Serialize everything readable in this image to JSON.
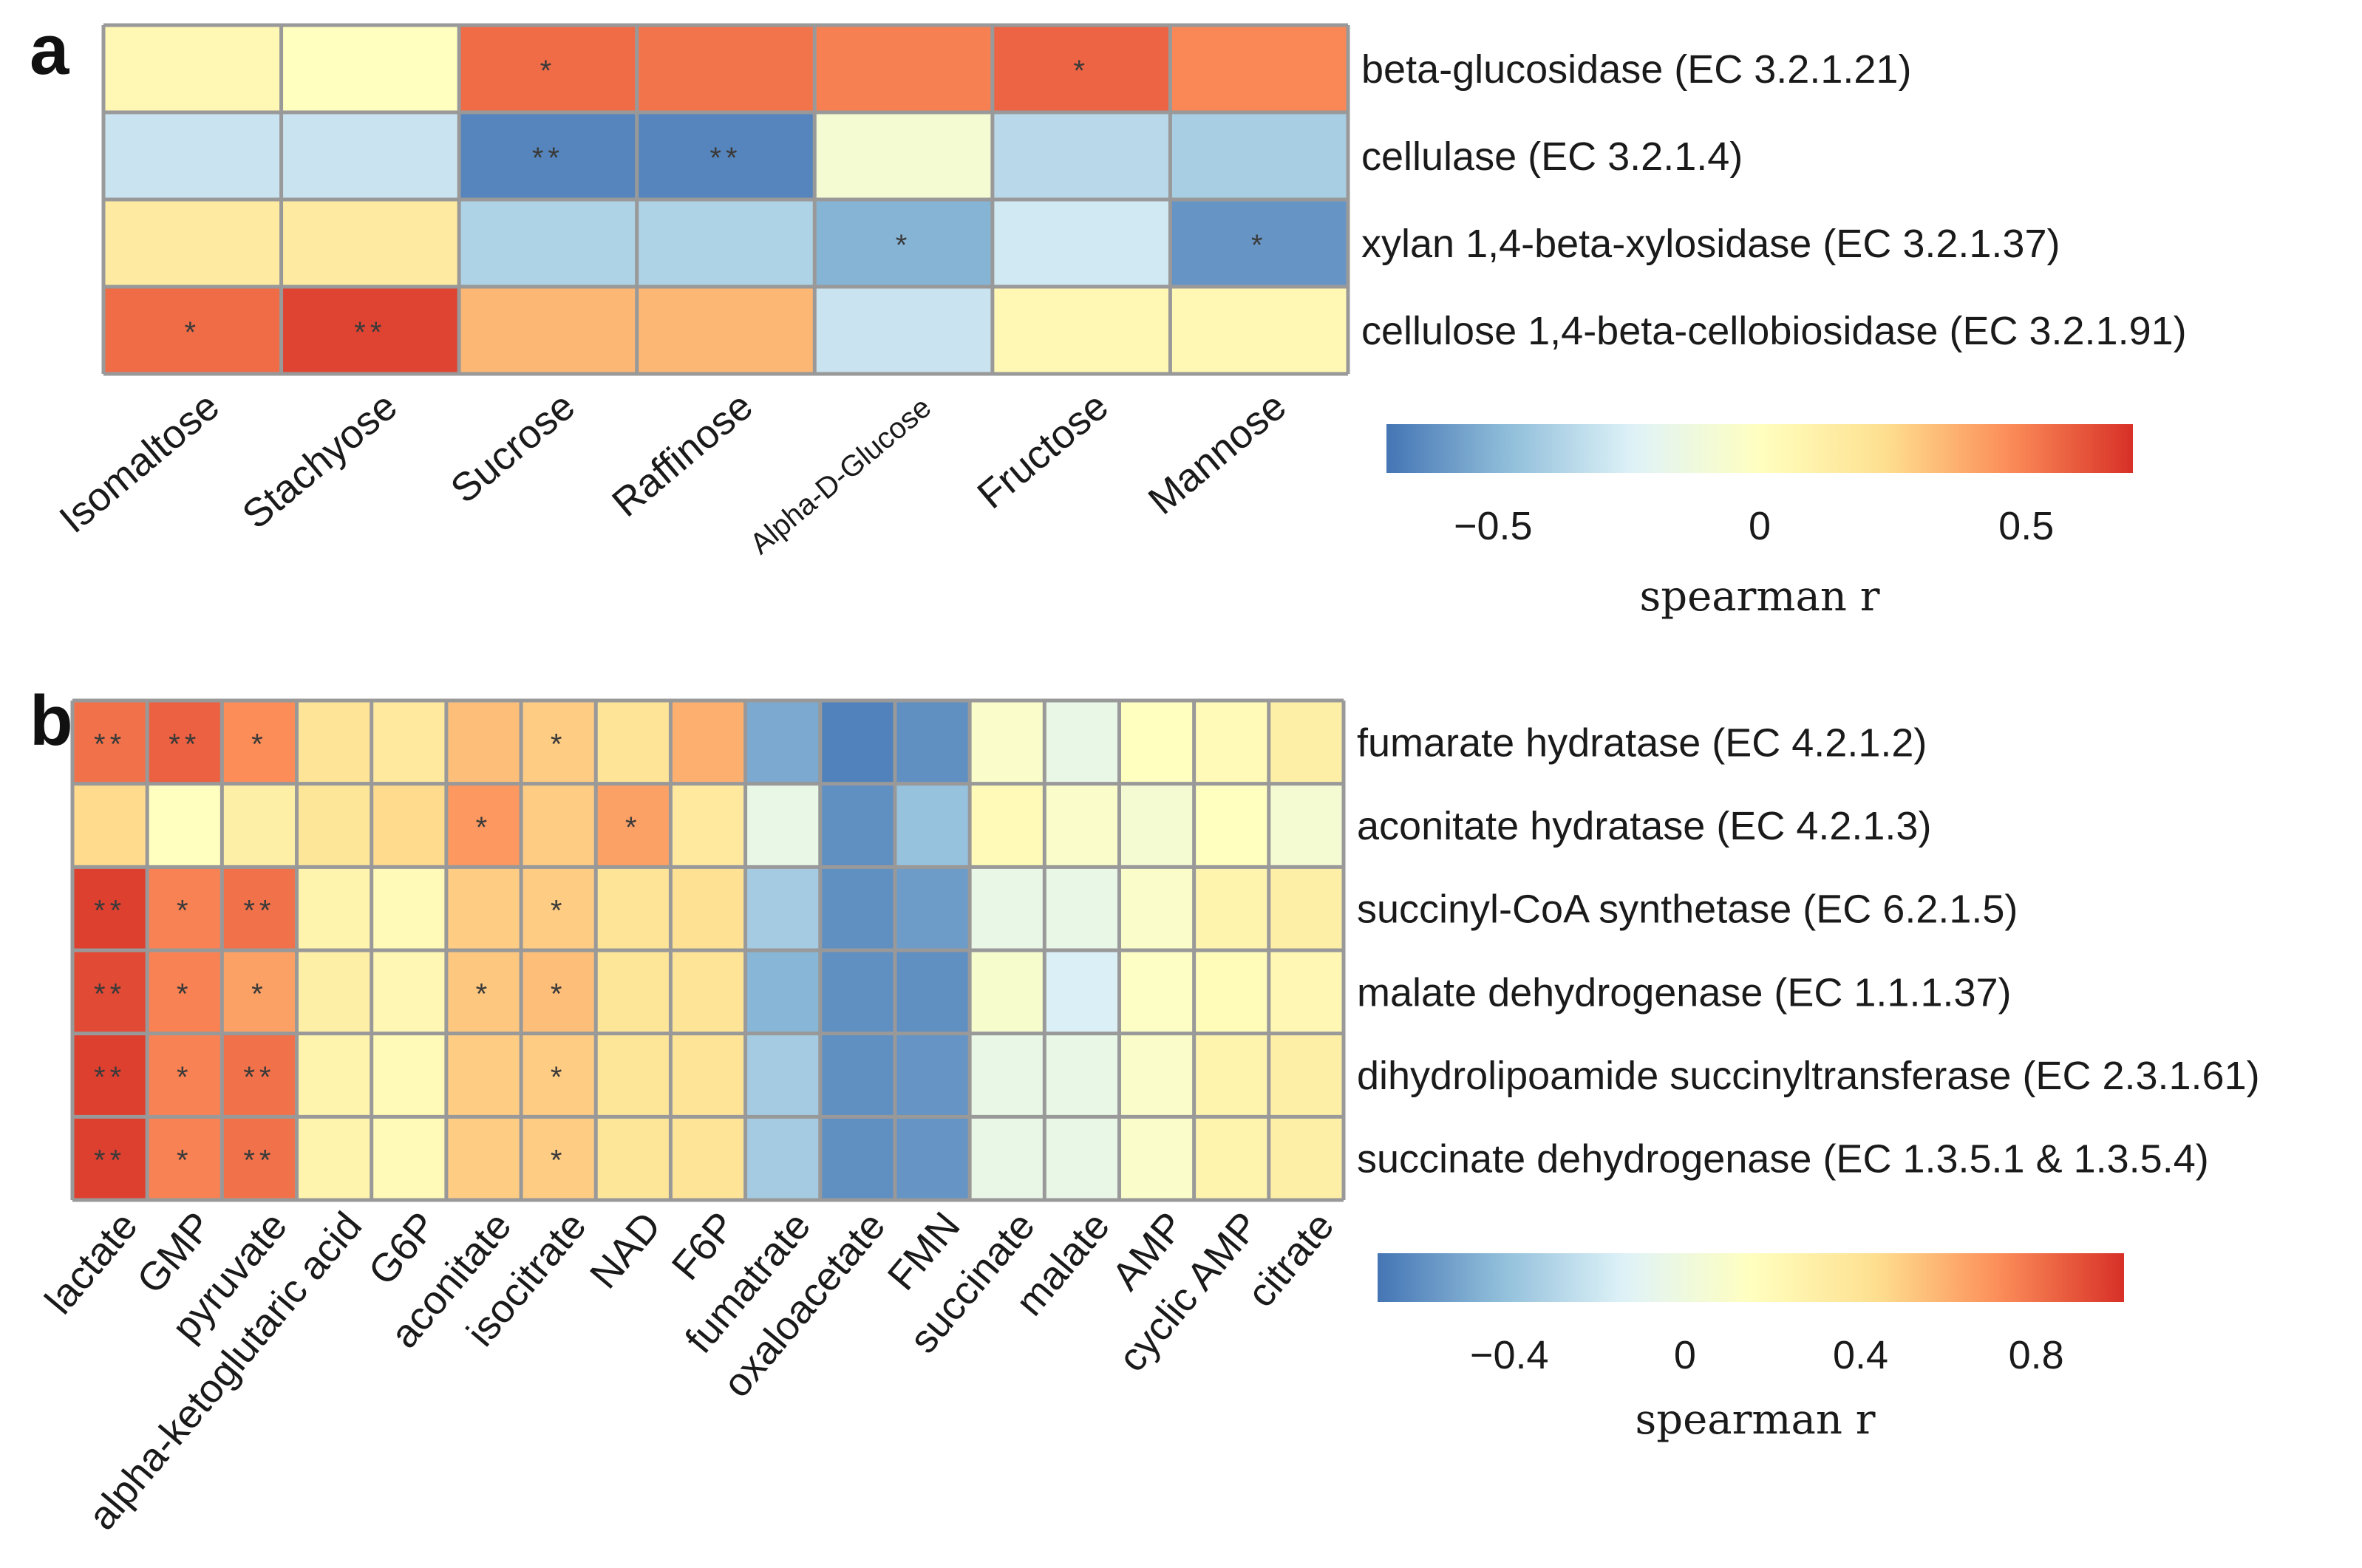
{
  "panels": [
    {
      "label": "a",
      "chart_data": {
        "type": "heatmap",
        "columns": [
          "Isomaltose",
          "Stachyose",
          "Sucrose",
          "Raffinose",
          "Alpha-D-Glucose",
          "Fructose",
          "Mannose"
        ],
        "rows": [
          "beta-glucosidase (EC 3.2.1.21)",
          "cellulase (EC 3.2.1.4)",
          "xylan 1,4-beta-xylosidase (EC 3.2.1.37)",
          "cellulose 1,4-beta-cellobiosidase (EC 3.2.1.91)"
        ],
        "values": [
          [
            0.05,
            0.0,
            0.55,
            0.53,
            0.5,
            0.57,
            0.48
          ],
          [
            -0.3,
            -0.3,
            -0.65,
            -0.65,
            -0.08,
            -0.35,
            -0.4
          ],
          [
            0.15,
            0.15,
            -0.38,
            -0.38,
            -0.5,
            -0.28,
            -0.6
          ],
          [
            0.55,
            0.65,
            0.35,
            0.35,
            -0.3,
            0.05,
            0.05
          ]
        ],
        "significance": [
          [
            "",
            "",
            "*",
            "",
            "",
            "*",
            ""
          ],
          [
            "",
            "",
            "**",
            "**",
            "",
            "",
            ""
          ],
          [
            "",
            "",
            "",
            "",
            "*",
            "",
            "*"
          ],
          [
            "*",
            "**",
            "",
            "",
            "",
            "",
            ""
          ]
        ],
        "colorbar": {
          "title": "spearman r",
          "range": [
            -0.7,
            0.7
          ],
          "ticks": [
            -0.5,
            0,
            0.5
          ],
          "tick_labels": [
            "−0.5",
            "0",
            "0.5"
          ]
        }
      }
    },
    {
      "label": "b",
      "chart_data": {
        "type": "heatmap",
        "columns": [
          "lactate",
          "GMP",
          "pyruvate",
          "alpha-ketoglutaric acid",
          "G6P",
          "aconitate",
          "isocitrate",
          "NAD",
          "F6P",
          "fumatrate",
          "oxaloacetate",
          "FMN",
          "succinate",
          "malate",
          "AMP",
          "cyclic AMP",
          "citrate"
        ],
        "rows": [
          "fumarate hydratase (EC 4.2.1.2)",
          "aconitate hydratase (EC 4.2.1.3)",
          "succinyl-CoA synthetase (EC 6.2.1.5)",
          "malate dehydrogenase (EC 1.1.1.37)",
          "dihydrolipoamide succinyltransferase (EC 2.3.1.61)",
          "succinate dehydrogenase (EC 1.3.5.1 & 1.3.5.4)"
        ],
        "values": [
          [
            0.8,
            0.85,
            0.72,
            0.4,
            0.35,
            0.55,
            0.5,
            0.4,
            0.6,
            -0.5,
            -0.65,
            -0.6,
            0.1,
            -0.05,
            0.15,
            0.2,
            0.3
          ],
          [
            0.45,
            0.15,
            0.3,
            0.38,
            0.45,
            0.68,
            0.5,
            0.65,
            0.35,
            -0.05,
            -0.6,
            -0.4,
            0.2,
            0.1,
            0.05,
            0.15,
            0.05
          ],
          [
            0.95,
            0.75,
            0.8,
            0.25,
            0.2,
            0.5,
            0.5,
            0.4,
            0.42,
            -0.35,
            -0.6,
            -0.55,
            -0.05,
            -0.05,
            0.1,
            0.25,
            0.3
          ],
          [
            0.92,
            0.75,
            0.65,
            0.3,
            0.22,
            0.52,
            0.55,
            0.38,
            0.4,
            -0.45,
            -0.6,
            -0.6,
            0.08,
            -0.15,
            0.12,
            0.18,
            0.22
          ],
          [
            0.95,
            0.75,
            0.8,
            0.25,
            0.2,
            0.5,
            0.5,
            0.38,
            0.4,
            -0.35,
            -0.6,
            -0.58,
            -0.05,
            -0.05,
            0.1,
            0.25,
            0.3
          ],
          [
            0.95,
            0.75,
            0.8,
            0.25,
            0.2,
            0.5,
            0.5,
            0.38,
            0.4,
            -0.35,
            -0.6,
            -0.58,
            -0.05,
            -0.05,
            0.1,
            0.25,
            0.3
          ]
        ],
        "significance": [
          [
            "**",
            "**",
            "*",
            "",
            "",
            "",
            "*",
            "",
            "",
            "",
            "",
            "",
            "",
            "",
            "",
            "",
            ""
          ],
          [
            "",
            "",
            "",
            "",
            "",
            "*",
            "",
            "*",
            "",
            "",
            "",
            "",
            "",
            "",
            "",
            "",
            ""
          ],
          [
            "**",
            "*",
            "**",
            "",
            "",
            "",
            "*",
            "",
            "",
            "",
            "",
            "",
            "",
            "",
            "",
            "",
            ""
          ],
          [
            "**",
            "*",
            "*",
            "",
            "",
            "*",
            "*",
            "",
            "",
            "",
            "",
            "",
            "",
            "",
            "",
            "",
            ""
          ],
          [
            "**",
            "*",
            "**",
            "",
            "",
            "",
            "*",
            "",
            "",
            "",
            "",
            "",
            "",
            "",
            "",
            "",
            ""
          ],
          [
            "**",
            "*",
            "**",
            "",
            "",
            "",
            "*",
            "",
            "",
            "",
            "",
            "",
            "",
            "",
            "",
            "",
            ""
          ]
        ],
        "colorbar": {
          "title": "spearman r",
          "range": [
            -0.7,
            1.0
          ],
          "ticks": [
            -0.4,
            0,
            0.4,
            0.8
          ],
          "tick_labels": [
            "−0.4",
            "0",
            "0.4",
            "0.8"
          ]
        }
      }
    }
  ],
  "colormap": [
    "#4575b4",
    "#91bfdb",
    "#e0f3f8",
    "#ffffbf",
    "#fee090",
    "#fc8d59",
    "#d73027"
  ],
  "grid_color": "#999999"
}
